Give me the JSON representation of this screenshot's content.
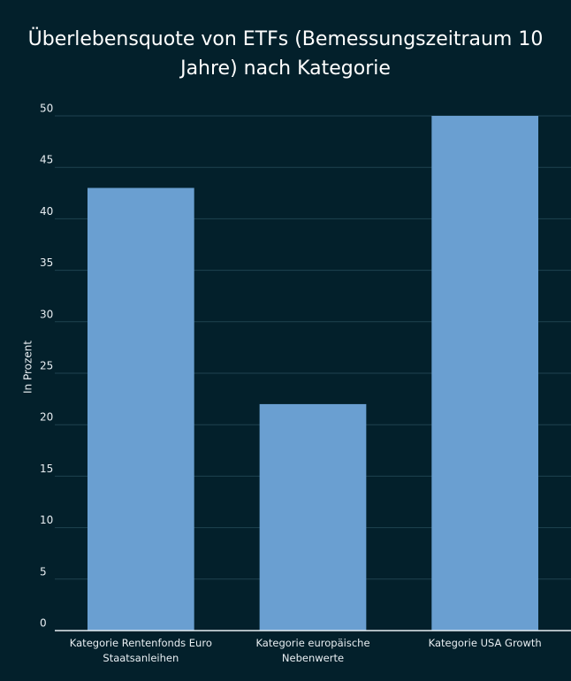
{
  "chart_data": {
    "type": "bar",
    "title": "Überlebensquote von ETFs (Bemessungszeitraum 10 Jahre) nach Kategorie",
    "y_label": "In Prozent",
    "categories": [
      "Kategorie Rentenfonds Euro Staatsanleihen",
      "Kategorie europäische Nebenwerte",
      "Kategorie USA Growth"
    ],
    "values": [
      43,
      22,
      50
    ],
    "color": "#6a9fd1",
    "ylim": [
      0,
      50
    ],
    "yticks": [
      0,
      5,
      10,
      15,
      20,
      25,
      30,
      35,
      40,
      45,
      50
    ],
    "grid": true
  }
}
